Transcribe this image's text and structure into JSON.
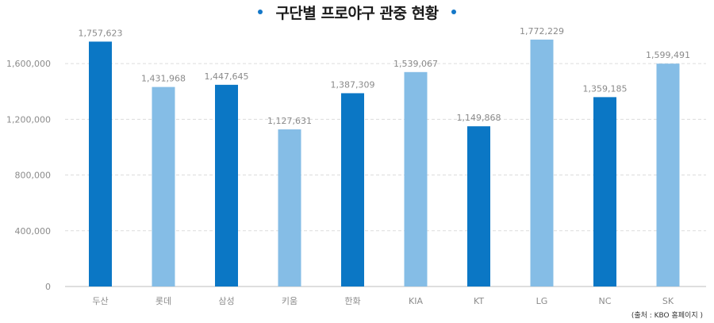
{
  "title": "구단별 프로야구 관중 현황",
  "source": "(출처 : KBO 홈페이지 )",
  "colors": {
    "dark": "#0b77c5",
    "light": "#85bde6",
    "title_dot": "#1478c8",
    "grid": "#dcdcdc",
    "axis_text": "#8c8c8c"
  },
  "chart_data": {
    "type": "bar",
    "title": "구단별 프로야구 관중 현황",
    "xlabel": "",
    "ylabel": "",
    "ylim": [
      0,
      1800000
    ],
    "yticks": [
      0,
      400000,
      800000,
      1200000,
      1600000
    ],
    "ytick_labels": [
      "0",
      "400,000",
      "800,000",
      "1,200,000",
      "1,600,000"
    ],
    "grid": true,
    "categories": [
      "두산",
      "롯데",
      "삼성",
      "키움",
      "한화",
      "KIA",
      "KT",
      "LG",
      "NC",
      "SK"
    ],
    "values": [
      1757623,
      1431968,
      1447645,
      1127631,
      1387309,
      1539067,
      1149868,
      1772229,
      1359185,
      1599491
    ],
    "value_labels": [
      "1,757,623",
      "1,431,968",
      "1,447,645",
      "1,127,631",
      "1,387,309",
      "1,539,067",
      "1,149,868",
      "1,772,229",
      "1,359,185",
      "1,599,491"
    ],
    "bar_colors": [
      "dark",
      "light",
      "dark",
      "light",
      "dark",
      "light",
      "dark",
      "light",
      "dark",
      "light"
    ]
  }
}
